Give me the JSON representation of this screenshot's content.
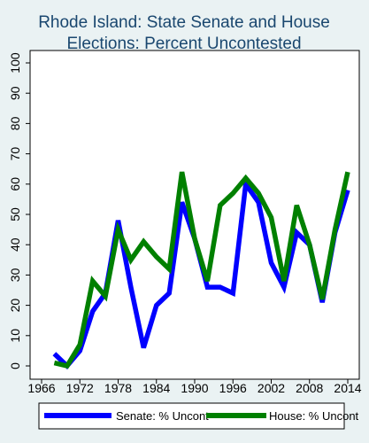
{
  "chart_data": {
    "type": "line",
    "title_lines": [
      "Rhode Island: State Senate and House",
      "Elections: Percent Uncontested"
    ],
    "xlim": [
      1965,
      2015
    ],
    "ylim": [
      0,
      100
    ],
    "x_ticks": [
      1966,
      1972,
      1978,
      1984,
      1990,
      1996,
      2002,
      2008,
      2014
    ],
    "y_ticks": [
      0,
      10,
      20,
      30,
      40,
      50,
      60,
      70,
      80,
      90,
      100
    ],
    "grid": false,
    "legend_position": "bottom",
    "series": [
      {
        "name": "Senate: % Uncont",
        "color": "#0000ff",
        "x": [
          1968,
          1970,
          1972,
          1974,
          1976,
          1978,
          1980,
          1982,
          1984,
          1986,
          1988,
          1990,
          1992,
          1994,
          1996,
          1998,
          2000,
          2002,
          2004,
          2006,
          2008,
          2010,
          2012,
          2014
        ],
        "y": [
          4,
          0,
          5,
          18,
          24,
          48,
          26,
          6,
          20,
          24,
          54,
          42,
          26,
          26,
          24,
          60,
          54,
          34,
          26,
          44,
          40,
          21,
          44,
          58
        ]
      },
      {
        "name": "House: % Uncont",
        "color": "#008000",
        "x": [
          1968,
          1970,
          1972,
          1974,
          1976,
          1978,
          1980,
          1982,
          1984,
          1986,
          1988,
          1990,
          1992,
          1994,
          1996,
          1998,
          2000,
          2002,
          2004,
          2006,
          2008,
          2010,
          2012,
          2014
        ],
        "y": [
          1,
          0,
          7,
          28,
          23,
          45,
          35,
          41,
          36,
          32,
          64,
          42,
          28,
          53,
          57,
          62,
          57,
          49,
          28,
          53,
          40,
          22,
          45,
          64
        ]
      }
    ]
  }
}
